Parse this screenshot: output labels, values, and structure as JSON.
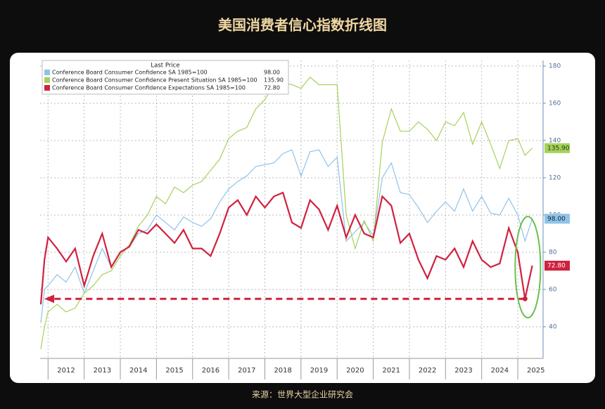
{
  "header": {
    "title": "美国消费者信心指数折线图"
  },
  "footer": {
    "source": "来源：世界大型企业研究会"
  },
  "chart_data": {
    "type": "line",
    "legend_title": "Last Price",
    "x": [
      2011.8,
      2011.9,
      2012,
      2012.25,
      2012.5,
      2012.75,
      2013,
      2013.25,
      2013.5,
      2013.75,
      2014,
      2014.25,
      2014.5,
      2014.75,
      2015,
      2015.25,
      2015.5,
      2015.75,
      2016,
      2016.25,
      2016.5,
      2016.75,
      2017,
      2017.25,
      2017.5,
      2017.75,
      2018,
      2018.25,
      2018.5,
      2018.75,
      2019,
      2019.25,
      2019.5,
      2019.75,
      2020,
      2020.25,
      2020.5,
      2020.75,
      2021,
      2021.25,
      2021.5,
      2021.75,
      2022,
      2022.25,
      2022.5,
      2022.75,
      2023,
      2023.25,
      2023.5,
      2023.75,
      2024,
      2024.25,
      2024.5,
      2024.75,
      2025,
      2025.2,
      2025.4
    ],
    "categories": [
      "2012",
      "2013",
      "2014",
      "2015",
      "2016",
      "2017",
      "2018",
      "2019",
      "2020",
      "2021",
      "2022",
      "2023",
      "2024",
      "2025"
    ],
    "series": [
      {
        "name": "Conference Board Consumer Confidence SA 1985=100",
        "color": "#8fc3ea",
        "last_label": "98.00",
        "values": [
          42,
          60,
          62,
          68,
          64,
          72,
          58,
          70,
          82,
          72,
          80,
          83,
          90,
          92,
          100,
          96,
          92,
          99,
          96,
          94,
          98,
          107,
          114,
          118,
          121,
          126,
          127,
          128,
          133,
          135,
          121,
          134,
          135,
          126,
          131,
          86,
          91,
          96,
          89,
          120,
          128,
          112,
          111,
          104,
          96,
          102,
          107,
          102,
          114,
          102,
          110,
          101,
          100,
          109,
          100,
          86,
          98
        ]
      },
      {
        "name": "Conference Board Consumer Confidence Present Situation SA 1985=100",
        "color": "#a6d15a",
        "last_label": "135.90",
        "values": [
          28,
          40,
          48,
          52,
          48,
          50,
          58,
          62,
          68,
          70,
          78,
          84,
          94,
          100,
          110,
          106,
          115,
          112,
          116,
          118,
          124,
          130,
          141,
          145,
          147,
          157,
          162,
          170,
          171,
          170,
          168,
          174,
          170,
          170,
          170,
          100,
          82,
          97,
          86,
          139,
          157,
          145,
          145,
          150,
          146,
          140,
          150,
          148,
          155,
          138,
          150,
          138,
          125,
          140,
          141,
          132,
          135.9
        ]
      },
      {
        "name": "Conference Board Consumer Confidence Expectations SA 1985=100",
        "color": "#d0213f",
        "last_label": "72.80",
        "values": [
          52,
          76,
          88,
          82,
          75,
          82,
          62,
          78,
          90,
          72,
          80,
          83,
          92,
          90,
          95,
          90,
          85,
          92,
          82,
          82,
          78,
          90,
          104,
          108,
          100,
          110,
          104,
          110,
          112,
          96,
          93,
          108,
          103,
          92,
          105,
          88,
          100,
          90,
          88,
          110,
          105,
          85,
          90,
          76,
          66,
          78,
          76,
          82,
          72,
          86,
          76,
          72,
          74,
          93,
          80,
          55,
          72.8
        ]
      }
    ],
    "threshold": 55,
    "xlim": [
      2011.78,
      2025.7
    ],
    "xticks": [
      2012,
      2013,
      2014,
      2015,
      2016,
      2017,
      2018,
      2019,
      2020,
      2021,
      2022,
      2023,
      2024,
      2025
    ],
    "ylim": [
      23,
      183
    ],
    "yticks": [
      40,
      60,
      80,
      100,
      120,
      140,
      160,
      180
    ],
    "grid": true
  }
}
